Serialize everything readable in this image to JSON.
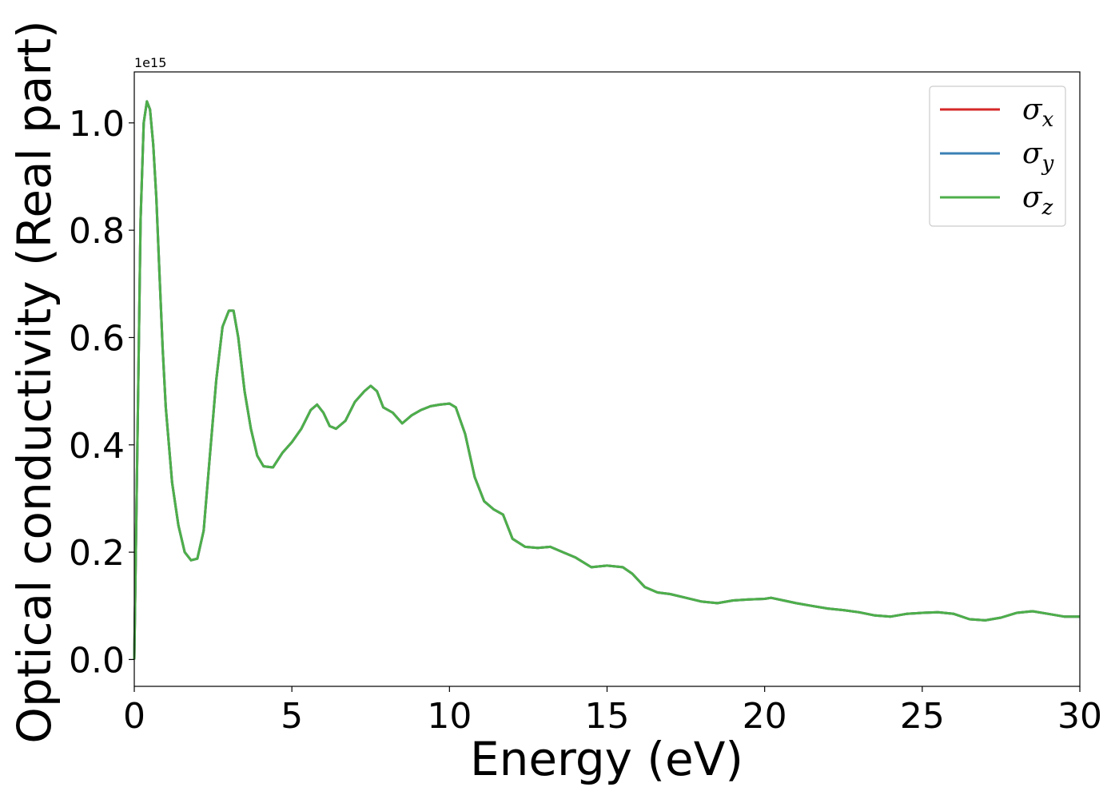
{
  "chart_data": {
    "type": "line",
    "title": "",
    "xlabel": "Energy (eV)",
    "ylabel": "Optical conductivity (Real part)",
    "y_offset_label": "1e15",
    "xlim": [
      0,
      30
    ],
    "ylim": [
      -0.05,
      1.095
    ],
    "xticks": [
      0,
      5,
      10,
      15,
      20,
      25,
      30
    ],
    "xtick_labels": [
      "0",
      "5",
      "10",
      "15",
      "20",
      "25",
      "30"
    ],
    "yticks": [
      0.0,
      0.2,
      0.4,
      0.6,
      0.8,
      1.0
    ],
    "ytick_labels": [
      "0.0",
      "0.2",
      "0.4",
      "0.6",
      "0.8",
      "1.0"
    ],
    "grid": false,
    "legend_position": "top-right",
    "x": [
      0,
      0.1,
      0.2,
      0.3,
      0.4,
      0.5,
      0.6,
      0.7,
      0.8,
      0.9,
      1.0,
      1.2,
      1.4,
      1.6,
      1.8,
      2.0,
      2.2,
      2.4,
      2.6,
      2.8,
      3.0,
      3.15,
      3.3,
      3.5,
      3.7,
      3.9,
      4.1,
      4.4,
      4.7,
      5.0,
      5.3,
      5.6,
      5.8,
      6.0,
      6.2,
      6.4,
      6.7,
      7.0,
      7.3,
      7.5,
      7.7,
      7.9,
      8.2,
      8.5,
      8.8,
      9.1,
      9.4,
      9.7,
      10.0,
      10.2,
      10.5,
      10.8,
      11.1,
      11.4,
      11.7,
      12.0,
      12.4,
      12.8,
      13.2,
      13.6,
      14.0,
      14.5,
      15.0,
      15.5,
      15.8,
      16.2,
      16.6,
      17.0,
      17.5,
      18.0,
      18.5,
      19.0,
      19.5,
      20.0,
      20.2,
      20.6,
      21.0,
      21.5,
      22.0,
      22.5,
      23.0,
      23.5,
      24.0,
      24.5,
      25.0,
      25.5,
      26.0,
      26.5,
      27.0,
      27.5,
      28.0,
      28.5,
      29.0,
      29.5,
      30.0
    ],
    "y": [
      0.0,
      0.4,
      0.82,
      1.0,
      1.04,
      1.025,
      0.96,
      0.86,
      0.72,
      0.58,
      0.47,
      0.33,
      0.25,
      0.2,
      0.185,
      0.188,
      0.24,
      0.38,
      0.52,
      0.62,
      0.65,
      0.65,
      0.6,
      0.5,
      0.43,
      0.38,
      0.36,
      0.358,
      0.385,
      0.405,
      0.43,
      0.465,
      0.475,
      0.46,
      0.435,
      0.43,
      0.445,
      0.48,
      0.5,
      0.51,
      0.5,
      0.47,
      0.46,
      0.44,
      0.455,
      0.465,
      0.472,
      0.475,
      0.477,
      0.47,
      0.42,
      0.34,
      0.295,
      0.28,
      0.27,
      0.225,
      0.21,
      0.208,
      0.21,
      0.2,
      0.19,
      0.172,
      0.175,
      0.172,
      0.16,
      0.135,
      0.125,
      0.122,
      0.115,
      0.108,
      0.105,
      0.11,
      0.112,
      0.113,
      0.115,
      0.11,
      0.105,
      0.1,
      0.095,
      0.092,
      0.088,
      0.082,
      0.08,
      0.085,
      0.087,
      0.088,
      0.085,
      0.075,
      0.073,
      0.078,
      0.087,
      0.09,
      0.085,
      0.08,
      0.08
    ],
    "series": [
      {
        "name": "σ",
        "subscript": "x",
        "color": "#d62728"
      },
      {
        "name": "σ",
        "subscript": "y",
        "color": "#3a7fb5"
      },
      {
        "name": "σ",
        "subscript": "z",
        "color": "#4daf4a"
      }
    ]
  }
}
